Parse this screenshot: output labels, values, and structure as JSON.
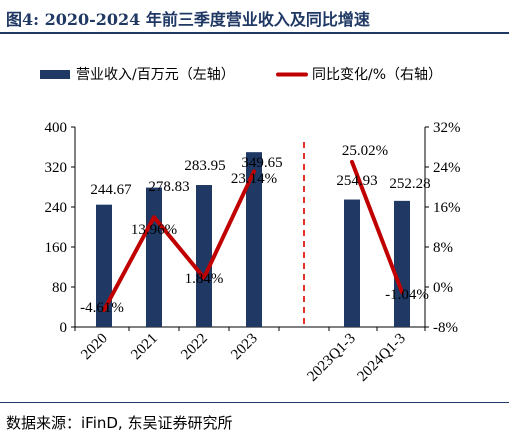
{
  "title": "图4:  2020-2024 年前三季度营业收入及同比增速",
  "source": "数据来源：iFinD, 东吴证券研究所",
  "colors": {
    "bar": "#1f3864",
    "line": "#c00000",
    "divider": "#e0312b",
    "title": "#1f3864"
  },
  "chart_data": {
    "type": "bar",
    "categories": [
      "2020",
      "2021",
      "2022",
      "2023",
      "",
      "2023Q1-3",
      "2024Q1-3"
    ],
    "series": [
      {
        "name": "营业收入/百万元（左轴）",
        "type": "bar",
        "axis": "left",
        "values": [
          244.67,
          278.83,
          283.95,
          349.65,
          null,
          254.93,
          252.28
        ],
        "labels": [
          "244.67",
          "278.83",
          "283.95",
          "349.65",
          "",
          "254.93",
          "252.28"
        ]
      },
      {
        "name": "同比变化/%（右轴）",
        "type": "line",
        "axis": "right",
        "values": [
          -4.61,
          13.96,
          1.84,
          23.14,
          null,
          25.02,
          -1.04
        ],
        "labels": [
          "-4.61%",
          "13.96%",
          "1.84%",
          "23.14%",
          "",
          "25.02%",
          "-1.04%"
        ]
      }
    ],
    "y_left": {
      "min": 0,
      "max": 400,
      "ticks": [
        0,
        80,
        160,
        240,
        320,
        400
      ],
      "tick_labels": [
        "0",
        "80",
        "160",
        "240",
        "320",
        "400"
      ]
    },
    "y_right": {
      "min": -8,
      "max": 32,
      "ticks": [
        -8,
        0,
        8,
        16,
        24,
        32
      ],
      "tick_labels": [
        "-8%",
        "0%",
        "8%",
        "16%",
        "24%",
        "32%"
      ]
    },
    "legend_position": "top",
    "divider": "dashed vertical line between 2023 and 2023Q1-3",
    "grid": false
  }
}
